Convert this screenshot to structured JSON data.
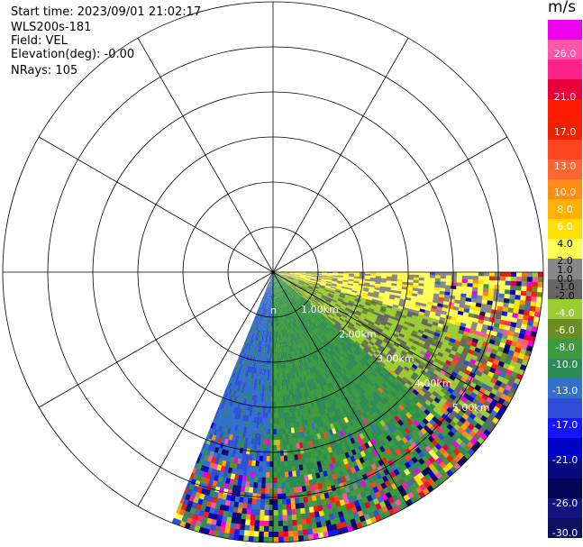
{
  "header": {
    "start_time": "Start time: 2023/09/01 21:02:17",
    "instrument": "WLS200s-181",
    "field": "Field: VEL",
    "elevation": "Elevation(deg): -0.00",
    "nrays": "NRays: 105"
  },
  "colors": {
    "grid": "#000000",
    "range_label": "#ffffff"
  },
  "chart_data": {
    "type": "heatmap",
    "projection": "polar-ppi",
    "sector_deg": [
      90,
      202
    ],
    "range_km": [
      0,
      6
    ],
    "range_rings_km": [
      1,
      2,
      3,
      4,
      5,
      6
    ],
    "range_ring_labels": [
      "1.00km",
      "2.00km",
      "3.00km",
      "4.00km",
      "5.00km"
    ],
    "range_origin_label_fragment": "n",
    "spoke_interval_deg": 30,
    "colorbar": {
      "unit": "m/s",
      "min": -30,
      "max": 30,
      "tick_labels": [
        "26.0",
        "21.0",
        "17.0",
        "13.0",
        "10.0",
        "8.0",
        "6.0",
        "4.0",
        "2.0",
        "1.0",
        "0.0",
        "-1.0",
        "-2.0",
        "-4.0",
        "-6.0",
        "-8.0",
        "-10.0",
        "-13.0",
        "-17.0",
        "-21.0",
        "-26.0",
        "-30.0"
      ],
      "colors": [
        "#ee00ee",
        "#ff55aa",
        "#ff2288",
        "#e8003a",
        "#ff1a00",
        "#ee2200",
        "#ff4422",
        "#ff6633",
        "#ff8c14",
        "#ffb000",
        "#ffe000",
        "#ffff55",
        "#888888",
        "#666666",
        "#9acd32",
        "#6b8e23",
        "#3d9a3d",
        "#2e8b57",
        "#3370c9",
        "#2f4fd8",
        "#1414ff",
        "#0000c8",
        "#0a0a80",
        "#050555",
        "#141480",
        "#101060"
      ]
    },
    "wind_field": {
      "description_free": true,
      "near_band_velocity": -10.0,
      "gust_bands": [
        {
          "az_from": 90,
          "az_to": 105,
          "velocity": 3.0
        },
        {
          "az_from": 105,
          "az_to": 130,
          "velocity": -3.0
        },
        {
          "az_from": 130,
          "az_to": 180,
          "velocity": -9.0
        },
        {
          "az_from": 180,
          "az_to": 202,
          "velocity": -13.0
        }
      ]
    }
  }
}
